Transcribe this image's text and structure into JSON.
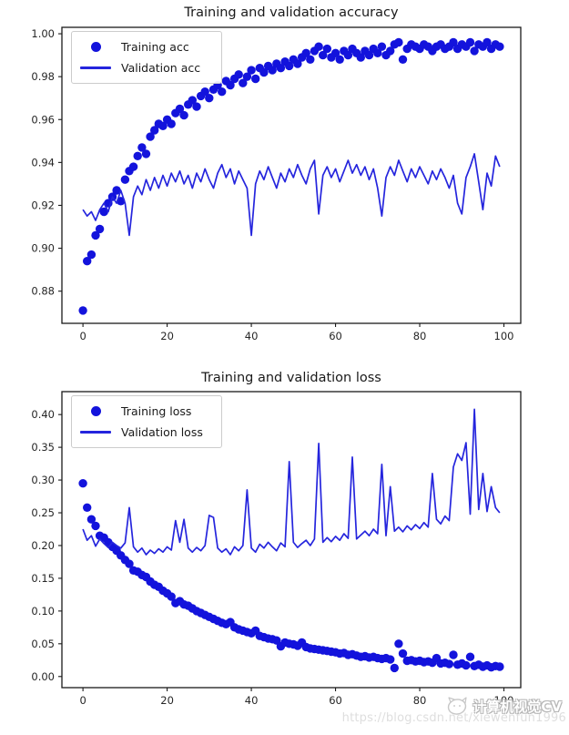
{
  "colors": {
    "marker": "#1313dc",
    "line": "#2525dd",
    "axis": "#1a1a1a",
    "tick_label": "#262626",
    "legend_border": "#cccccc"
  },
  "watermark": {
    "brand": "计算机视觉CV",
    "url": "https://blog.csdn.net/xiewenfun1996"
  },
  "chart_data": [
    {
      "type": "scatter",
      "title": "Training and validation accuracy",
      "xlabel": "",
      "ylabel": "",
      "x_start": 0,
      "xlim": [
        -5,
        104
      ],
      "ylim": [
        0.865,
        1.003
      ],
      "grid": false,
      "legend_position": "upper left",
      "xticks": [
        "0",
        "20",
        "40",
        "60",
        "80",
        "100"
      ],
      "yticks": [
        "0.88",
        "0.90",
        "0.92",
        "0.94",
        "0.96",
        "0.98",
        "1.00"
      ],
      "series": [
        {
          "name": "Training acc",
          "style": "scatter",
          "values": [
            0.871,
            0.894,
            0.897,
            0.906,
            0.909,
            0.917,
            0.921,
            0.924,
            0.927,
            0.922,
            0.932,
            0.936,
            0.938,
            0.943,
            0.947,
            0.944,
            0.952,
            0.955,
            0.958,
            0.957,
            0.96,
            0.958,
            0.963,
            0.965,
            0.962,
            0.967,
            0.969,
            0.966,
            0.971,
            0.973,
            0.97,
            0.974,
            0.976,
            0.973,
            0.978,
            0.976,
            0.979,
            0.981,
            0.977,
            0.98,
            0.983,
            0.979,
            0.984,
            0.982,
            0.985,
            0.983,
            0.986,
            0.984,
            0.987,
            0.985,
            0.988,
            0.986,
            0.989,
            0.991,
            0.988,
            0.992,
            0.994,
            0.99,
            0.993,
            0.989,
            0.991,
            0.988,
            0.992,
            0.99,
            0.993,
            0.991,
            0.989,
            0.992,
            0.99,
            0.993,
            0.991,
            0.994,
            0.99,
            0.992,
            0.995,
            0.996,
            0.988,
            0.993,
            0.995,
            0.994,
            0.993,
            0.995,
            0.994,
            0.992,
            0.994,
            0.995,
            0.993,
            0.994,
            0.996,
            0.993,
            0.995,
            0.994,
            0.996,
            0.992,
            0.995,
            0.994,
            0.996,
            0.993,
            0.995,
            0.994
          ]
        },
        {
          "name": "Validation acc",
          "style": "line",
          "values": [
            0.918,
            0.915,
            0.917,
            0.913,
            0.918,
            0.921,
            0.917,
            0.924,
            0.921,
            0.927,
            0.921,
            0.906,
            0.924,
            0.929,
            0.925,
            0.932,
            0.927,
            0.933,
            0.928,
            0.934,
            0.929,
            0.935,
            0.931,
            0.936,
            0.93,
            0.934,
            0.928,
            0.935,
            0.931,
            0.937,
            0.932,
            0.928,
            0.935,
            0.939,
            0.933,
            0.937,
            0.93,
            0.936,
            0.932,
            0.928,
            0.906,
            0.93,
            0.936,
            0.932,
            0.938,
            0.933,
            0.928,
            0.935,
            0.931,
            0.937,
            0.933,
            0.939,
            0.934,
            0.93,
            0.937,
            0.941,
            0.916,
            0.934,
            0.938,
            0.933,
            0.937,
            0.931,
            0.936,
            0.941,
            0.935,
            0.939,
            0.934,
            0.938,
            0.932,
            0.937,
            0.928,
            0.915,
            0.933,
            0.938,
            0.934,
            0.941,
            0.936,
            0.931,
            0.937,
            0.933,
            0.938,
            0.934,
            0.93,
            0.936,
            0.932,
            0.937,
            0.933,
            0.928,
            0.934,
            0.921,
            0.916,
            0.933,
            0.938,
            0.944,
            0.931,
            0.918,
            0.935,
            0.929,
            0.943,
            0.938
          ]
        }
      ]
    },
    {
      "type": "scatter",
      "title": "Training and validation loss",
      "xlabel": "",
      "ylabel": "",
      "x_start": 0,
      "xlim": [
        -5,
        104
      ],
      "ylim": [
        -0.017,
        0.435
      ],
      "grid": false,
      "legend_position": "upper left",
      "xticks": [
        "0",
        "20",
        "40",
        "60",
        "80",
        "100"
      ],
      "yticks": [
        "0.00",
        "0.05",
        "0.10",
        "0.15",
        "0.20",
        "0.25",
        "0.30",
        "0.35",
        "0.40"
      ],
      "series": [
        {
          "name": "Training loss",
          "style": "scatter",
          "values": [
            0.295,
            0.258,
            0.24,
            0.23,
            0.215,
            0.212,
            0.205,
            0.198,
            0.192,
            0.185,
            0.178,
            0.172,
            0.162,
            0.16,
            0.155,
            0.152,
            0.145,
            0.14,
            0.137,
            0.131,
            0.127,
            0.122,
            0.112,
            0.115,
            0.11,
            0.108,
            0.104,
            0.1,
            0.097,
            0.094,
            0.091,
            0.088,
            0.085,
            0.082,
            0.08,
            0.083,
            0.075,
            0.072,
            0.07,
            0.068,
            0.066,
            0.07,
            0.062,
            0.06,
            0.058,
            0.057,
            0.055,
            0.046,
            0.052,
            0.05,
            0.049,
            0.047,
            0.052,
            0.045,
            0.043,
            0.042,
            0.041,
            0.04,
            0.039,
            0.038,
            0.037,
            0.035,
            0.036,
            0.033,
            0.034,
            0.032,
            0.03,
            0.031,
            0.029,
            0.03,
            0.028,
            0.027,
            0.028,
            0.026,
            0.013,
            0.05,
            0.035,
            0.024,
            0.025,
            0.023,
            0.024,
            0.022,
            0.023,
            0.021,
            0.028,
            0.02,
            0.021,
            0.019,
            0.033,
            0.018,
            0.02,
            0.017,
            0.03,
            0.016,
            0.018,
            0.015,
            0.017,
            0.014,
            0.016,
            0.015
          ]
        },
        {
          "name": "Validation loss",
          "style": "line",
          "values": [
            0.225,
            0.208,
            0.215,
            0.199,
            0.21,
            0.203,
            0.197,
            0.205,
            0.2,
            0.196,
            0.204,
            0.258,
            0.198,
            0.19,
            0.196,
            0.186,
            0.193,
            0.188,
            0.195,
            0.19,
            0.198,
            0.193,
            0.238,
            0.205,
            0.24,
            0.196,
            0.19,
            0.197,
            0.192,
            0.2,
            0.246,
            0.243,
            0.196,
            0.19,
            0.195,
            0.186,
            0.198,
            0.192,
            0.2,
            0.285,
            0.196,
            0.19,
            0.202,
            0.196,
            0.205,
            0.198,
            0.192,
            0.204,
            0.198,
            0.328,
            0.205,
            0.197,
            0.203,
            0.208,
            0.2,
            0.21,
            0.356,
            0.205,
            0.212,
            0.206,
            0.214,
            0.208,
            0.218,
            0.211,
            0.335,
            0.21,
            0.216,
            0.222,
            0.215,
            0.225,
            0.218,
            0.324,
            0.215,
            0.29,
            0.222,
            0.228,
            0.221,
            0.23,
            0.224,
            0.232,
            0.226,
            0.235,
            0.228,
            0.31,
            0.24,
            0.233,
            0.245,
            0.238,
            0.32,
            0.34,
            0.33,
            0.357,
            0.248,
            0.408,
            0.255,
            0.31,
            0.252,
            0.29,
            0.258,
            0.25
          ]
        }
      ]
    }
  ]
}
